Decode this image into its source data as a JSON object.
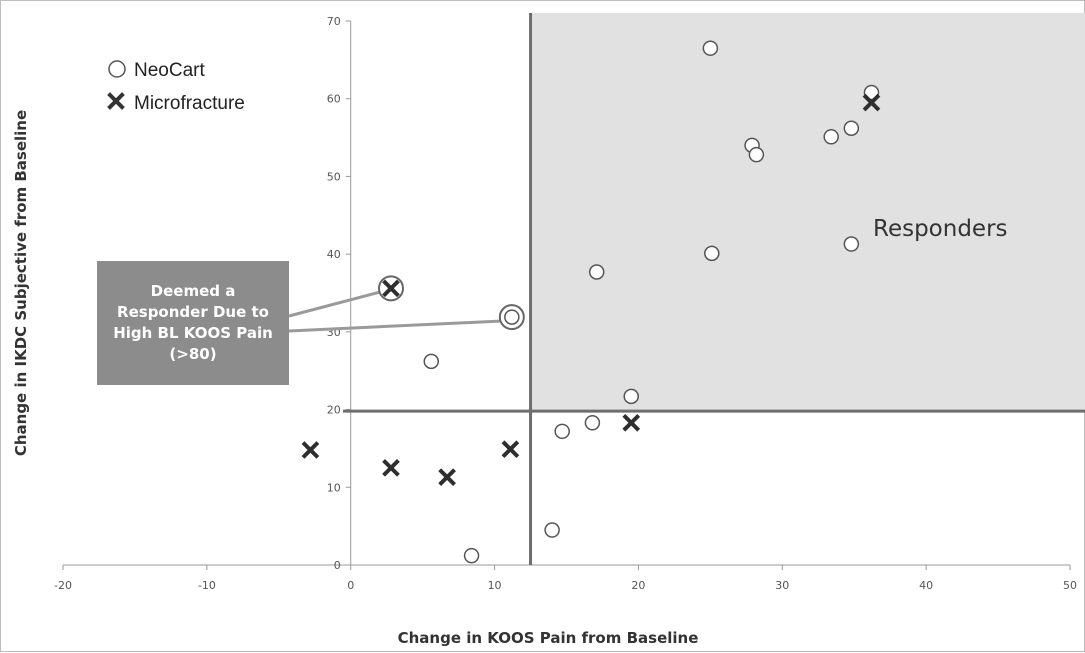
{
  "chart_data": {
    "type": "scatter",
    "xlabel": "Change in KOOS Pain from Baseline",
    "ylabel": "Change in IKDC Subjective from Baseline",
    "xlim": [
      -20,
      50
    ],
    "ylim": [
      0,
      70
    ],
    "x_ticks": [
      -20,
      -10,
      0,
      10,
      20,
      30,
      40,
      50
    ],
    "y_ticks": [
      0,
      10,
      20,
      30,
      40,
      50,
      60,
      70
    ],
    "grid": false,
    "legend_position": "top-left",
    "threshold_x": 12.5,
    "threshold_y": 19.8,
    "responder_region_color": "#e1e1e1",
    "threshold_line_color": "#6e6e6e",
    "series": [
      {
        "name": "NeoCart",
        "marker": "open-circle",
        "points": [
          [
            25,
            66.5
          ],
          [
            36.2,
            60.8
          ],
          [
            34.8,
            56.2
          ],
          [
            33.4,
            55.1
          ],
          [
            27.9,
            54.0
          ],
          [
            28.2,
            52.8
          ],
          [
            34.8,
            41.3
          ],
          [
            25.1,
            40.1
          ],
          [
            17.1,
            37.7
          ],
          [
            11.2,
            31.9
          ],
          [
            5.6,
            26.2
          ],
          [
            19.5,
            21.7
          ],
          [
            16.8,
            18.3
          ],
          [
            14.7,
            17.2
          ],
          [
            14.0,
            4.5
          ],
          [
            8.4,
            1.2
          ]
        ]
      },
      {
        "name": "Microfracture",
        "marker": "x",
        "points": [
          [
            36.2,
            59.5
          ],
          [
            2.8,
            35.6
          ],
          [
            19.5,
            18.3
          ],
          [
            11.1,
            14.9
          ],
          [
            -2.8,
            14.8
          ],
          [
            2.8,
            12.5
          ],
          [
            6.7,
            11.3
          ]
        ]
      }
    ],
    "highlighted_points": [
      [
        2.8,
        35.6
      ],
      [
        11.2,
        31.9
      ]
    ],
    "annotations": {
      "responders": "Responders",
      "callout": "Deemed a Responder Due to High BL KOOS Pain (>80)"
    }
  },
  "legend": {
    "neocart_label": "NeoCart",
    "microfracture_label": "Microfracture"
  }
}
